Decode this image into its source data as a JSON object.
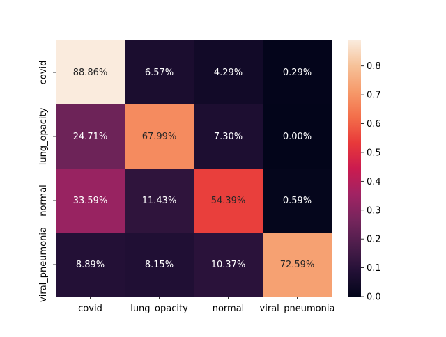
{
  "chart_data": {
    "type": "heatmap",
    "row_labels": [
      "covid",
      "lung_opacity",
      "normal",
      "viral_pneumonia"
    ],
    "column_labels": [
      "covid",
      "lung_opacity",
      "normal",
      "viral_pneumonia"
    ],
    "values": [
      [
        0.8886,
        0.0657,
        0.0429,
        0.0029
      ],
      [
        0.2471,
        0.6799,
        0.073,
        0.0
      ],
      [
        0.3359,
        0.1143,
        0.5439,
        0.0059
      ],
      [
        0.0889,
        0.0815,
        0.1037,
        0.7259
      ]
    ],
    "cell_labels": [
      [
        "88.86%",
        "6.57%",
        "4.29%",
        "0.29%"
      ],
      [
        "24.71%",
        "67.99%",
        "7.30%",
        "0.00%"
      ],
      [
        "33.59%",
        "11.43%",
        "54.39%",
        "0.59%"
      ],
      [
        "8.89%",
        "8.15%",
        "10.37%",
        "72.59%"
      ]
    ],
    "colorbar": {
      "min": 0.0,
      "max": 0.8886,
      "ticks": [
        0.0,
        0.1,
        0.2,
        0.3,
        0.4,
        0.5,
        0.6,
        0.7,
        0.8
      ],
      "tick_labels": [
        "0.0",
        "0.1",
        "0.2",
        "0.3",
        "0.4",
        "0.5",
        "0.6",
        "0.7",
        "0.8"
      ],
      "colormap": "rocket"
    },
    "title": "",
    "xlabel": "",
    "ylabel": ""
  }
}
